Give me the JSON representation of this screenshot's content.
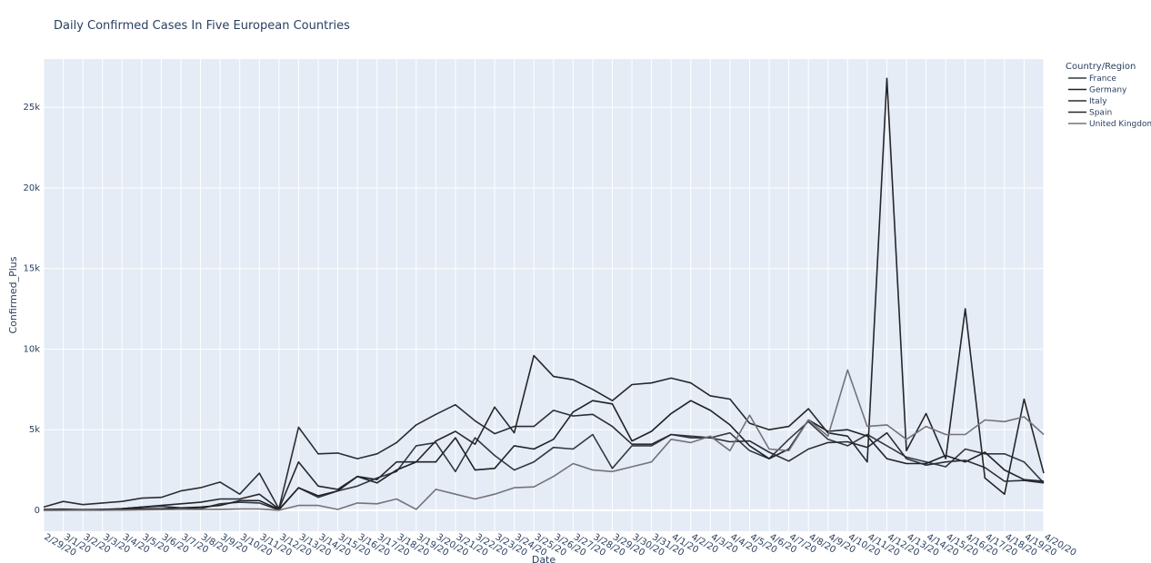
{
  "chart_data": {
    "type": "line",
    "title": "Daily Confirmed Cases In Five European Countries",
    "xlabel": "Date",
    "ylabel": "Confirmed_Plus",
    "legend_title": "Country/Region",
    "legend_placement": "top-right",
    "grid": true,
    "ylim": [
      -1300,
      28000
    ],
    "ytick_values": [
      0,
      5000,
      10000,
      15000,
      20000,
      25000
    ],
    "ytick_labels": [
      "0",
      "5k",
      "10k",
      "15k",
      "20k",
      "25k"
    ],
    "x": [
      "2/29/20",
      "3/1/20",
      "3/2/20",
      "3/3/20",
      "3/4/20",
      "3/5/20",
      "3/6/20",
      "3/7/20",
      "3/8/20",
      "3/9/20",
      "3/10/20",
      "3/11/20",
      "3/12/20",
      "3/13/20",
      "3/14/20",
      "3/15/20",
      "3/16/20",
      "3/17/20",
      "3/18/20",
      "3/19/20",
      "3/20/20",
      "3/21/20",
      "3/22/20",
      "3/23/20",
      "3/24/20",
      "3/25/20",
      "3/26/20",
      "3/27/20",
      "3/28/20",
      "3/29/20",
      "3/30/20",
      "3/31/20",
      "4/1/20",
      "4/2/20",
      "4/3/20",
      "4/4/20",
      "4/5/20",
      "4/6/20",
      "4/7/20",
      "4/8/20",
      "4/9/20",
      "4/10/20",
      "4/11/20",
      "4/12/20",
      "4/13/20",
      "4/14/20",
      "4/15/20",
      "4/16/20",
      "4/17/20",
      "4/18/20",
      "4/19/20",
      "4/20/20"
    ],
    "series": [
      {
        "name": "France",
        "color": "#333842",
        "values": [
          40,
          70,
          30,
          10,
          100,
          200,
          250,
          150,
          100,
          400,
          500,
          450,
          20,
          1400,
          800,
          1200,
          1500,
          2000,
          2400,
          4000,
          4200,
          2400,
          4500,
          3400,
          2500,
          3000,
          3900,
          3800,
          4700,
          2600,
          4000,
          4000,
          4700,
          4600,
          4500,
          4800,
          3700,
          3200,
          4400,
          5500,
          4400,
          4000,
          4700,
          4000,
          3300,
          3000,
          2700,
          3800,
          3500,
          3500,
          3000,
          1700
        ]
      },
      {
        "name": "Germany",
        "color": "#1f2126",
        "values": [
          50,
          50,
          40,
          50,
          60,
          100,
          100,
          150,
          200,
          300,
          600,
          600,
          50,
          1400,
          900,
          1200,
          2100,
          1700,
          2500,
          3000,
          3000,
          4500,
          2500,
          2600,
          4000,
          3800,
          4400,
          6100,
          6800,
          6600,
          4300,
          4900,
          6000,
          6800,
          6200,
          5300,
          4000,
          3200,
          3800,
          5600,
          4900,
          5000,
          4600,
          3200,
          2900,
          2900,
          3400,
          3000,
          3600,
          2500,
          1900,
          1800
        ]
      },
      {
        "name": "Italy",
        "color": "#2c2d33",
        "values": [
          200,
          550,
          350,
          450,
          550,
          750,
          800,
          1200,
          1400,
          1750,
          1000,
          2300,
          100,
          5150,
          3500,
          3550,
          3200,
          3500,
          4200,
          5300,
          5950,
          6550,
          5550,
          4750,
          5200,
          5200,
          6200,
          5850,
          5950,
          5200,
          4100,
          4100,
          4700,
          4500,
          4500,
          4250,
          4300,
          3600,
          3050,
          3800,
          4200,
          4250,
          3900,
          4800,
          3200,
          2800,
          3000,
          3100,
          2650,
          1800,
          1850,
          1700
        ]
      },
      {
        "name": "Spain",
        "color": "#25262b",
        "values": [
          0,
          10,
          20,
          50,
          100,
          200,
          300,
          400,
          500,
          700,
          700,
          1000,
          80,
          3000,
          1500,
          1300,
          2100,
          1900,
          3000,
          3000,
          4300,
          4900,
          4100,
          6400,
          4800,
          9600,
          8300,
          8100,
          7500,
          6800,
          7800,
          7900,
          8200,
          7900,
          7100,
          6900,
          5400,
          5000,
          5200,
          6300,
          4800,
          4600,
          3000,
          26800,
          3700,
          6000,
          3200,
          12500,
          2000,
          1000,
          6900,
          2300
        ]
      },
      {
        "name": "United Kingdom",
        "color": "#75727a",
        "values": [
          0,
          0,
          0,
          0,
          10,
          30,
          40,
          50,
          50,
          60,
          80,
          80,
          0,
          300,
          300,
          50,
          450,
          400,
          700,
          60,
          1300,
          1000,
          700,
          1000,
          1400,
          1450,
          2100,
          2900,
          2500,
          2400,
          2700,
          3000,
          4400,
          4200,
          4600,
          3700,
          5900,
          3800,
          3700,
          5600,
          4600,
          8700,
          5200,
          5300,
          4400,
          5200,
          4700,
          4700,
          5600,
          5500,
          5800,
          4700
        ]
      }
    ]
  }
}
